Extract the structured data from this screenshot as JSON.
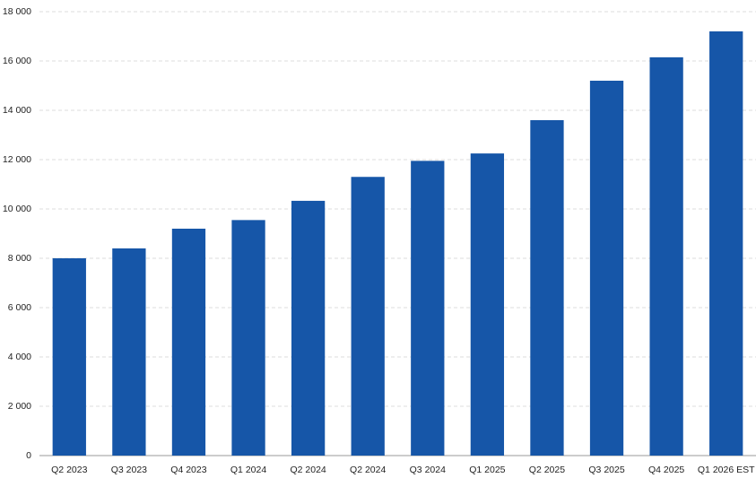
{
  "chart_data": {
    "type": "bar",
    "categories": [
      "Q2 2023",
      "Q3 2023",
      "Q4 2023",
      "Q1 2024",
      "Q2 2024",
      "Q2 2024",
      "Q3 2024",
      "Q1 2025",
      "Q2 2025",
      "Q3 2025",
      "Q4 2025",
      "Q1 2026 EST"
    ],
    "values": [
      8000,
      8400,
      9200,
      9550,
      10330,
      11300,
      11950,
      12250,
      13600,
      15200,
      16150,
      17200
    ],
    "color": "#1656a8",
    "ylim": [
      0,
      18000
    ],
    "yticks": [
      0,
      {
        "value": 2000,
        "label": "2 000"
      },
      {
        "value": 4000,
        "label": "4 000"
      },
      {
        "value": 6000,
        "label": "6 000"
      },
      {
        "value": 8000,
        "label": "8 000"
      },
      {
        "value": 10000,
        "label": "10 000"
      },
      {
        "value": 12000,
        "label": "12 000"
      },
      {
        "value": 14000,
        "label": "14 000"
      },
      {
        "value": 16000,
        "label": "16 000"
      },
      {
        "value": 18000,
        "label": "18 000"
      }
    ],
    "grid": true
  }
}
